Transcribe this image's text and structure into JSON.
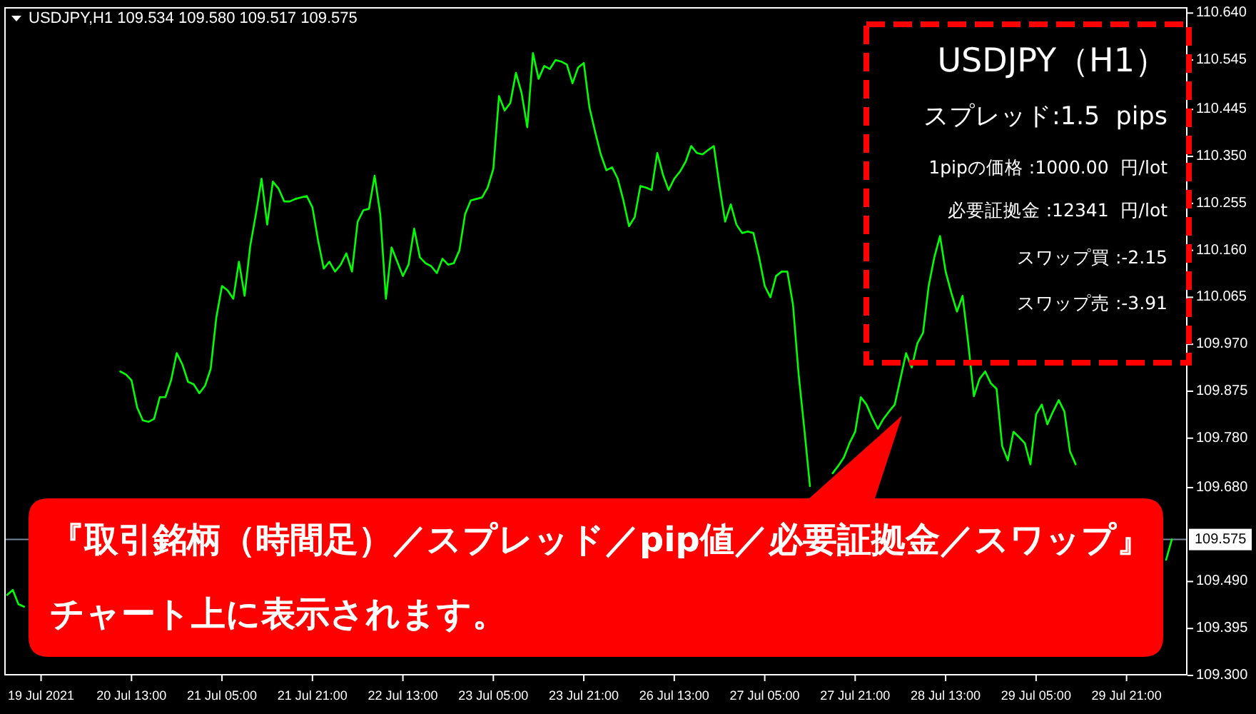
{
  "chart_data": {
    "type": "line",
    "title": "USDJPY,H1 109.534 109.580 109.517 109.575",
    "categories": [
      null,
      null,
      null,
      null,
      null,
      null,
      "19 Jul 2021",
      null,
      null,
      null,
      null,
      null,
      null,
      null,
      null,
      null,
      null,
      null,
      null,
      null,
      null,
      null,
      "20 Jul 13:00",
      null,
      null,
      null,
      null,
      null,
      null,
      null,
      null,
      null,
      null,
      null,
      null,
      null,
      null,
      null,
      "21 Jul 05:00",
      null,
      null,
      null,
      null,
      null,
      null,
      null,
      null,
      null,
      null,
      null,
      null,
      null,
      null,
      null,
      "21 Jul 21:00",
      null,
      null,
      null,
      null,
      null,
      null,
      null,
      null,
      null,
      null,
      null,
      null,
      null,
      null,
      null,
      "22 Jul 13:00",
      null,
      null,
      null,
      null,
      null,
      null,
      null,
      null,
      null,
      null,
      null,
      null,
      null,
      null,
      null,
      "23 Jul 05:00",
      null,
      null,
      null,
      null,
      null,
      null,
      null,
      null,
      null,
      null,
      null,
      null,
      null,
      null,
      null,
      "23 Jul 21:00",
      null,
      null,
      null,
      null,
      null,
      null,
      null,
      null,
      null,
      null,
      null,
      null,
      null,
      null,
      null,
      "26 Jul 13:00",
      null,
      null,
      null,
      null,
      null,
      null,
      null,
      null,
      null,
      null,
      null,
      null,
      null,
      null,
      null,
      "27 Jul 05:00",
      null,
      null,
      null,
      null,
      null,
      null,
      null,
      null,
      null,
      null,
      null,
      null,
      null,
      null,
      null,
      "27 Jul 21:00",
      null,
      null,
      null,
      null,
      null,
      null,
      null,
      null,
      null,
      null,
      null,
      null,
      null,
      null,
      null,
      "28 Jul 13:00",
      null,
      null,
      null,
      null,
      null,
      null,
      null,
      null,
      null,
      null,
      null,
      null,
      null,
      null,
      null,
      "29 Jul 05:00",
      null,
      null,
      null,
      null,
      null,
      null,
      null,
      null,
      null,
      null,
      null,
      null,
      null,
      null,
      null,
      "29 Jul 21:00",
      null,
      null,
      null,
      null,
      null,
      null,
      null,
      null
    ],
    "series": [
      {
        "color": "#00ff00",
        "values": [
          109.463,
          109.473,
          109.444,
          109.439,
          null,
          null,
          null,
          null,
          null,
          null,
          null,
          null,
          null,
          null,
          null,
          null,
          null,
          null,
          null,
          null,
          109.915,
          109.909,
          109.897,
          109.842,
          109.816,
          109.813,
          109.819,
          109.863,
          109.863,
          109.897,
          109.952,
          109.929,
          109.894,
          109.889,
          109.871,
          109.886,
          109.92,
          110.024,
          110.088,
          110.079,
          110.062,
          110.137,
          110.068,
          110.169,
          110.233,
          110.305,
          110.212,
          110.299,
          110.285,
          110.259,
          110.259,
          110.264,
          110.267,
          110.27,
          110.247,
          110.18,
          110.123,
          110.137,
          110.117,
          110.131,
          110.154,
          110.117,
          110.218,
          110.241,
          110.244,
          110.311,
          110.233,
          110.062,
          110.166,
          110.137,
          110.108,
          110.131,
          110.204,
          110.146,
          110.134,
          110.128,
          110.114,
          110.143,
          110.131,
          110.134,
          110.16,
          110.233,
          110.261,
          110.264,
          110.267,
          110.287,
          110.325,
          110.472,
          110.443,
          110.458,
          110.519,
          110.478,
          110.409,
          110.559,
          110.507,
          110.533,
          110.527,
          110.545,
          110.542,
          110.536,
          110.498,
          110.53,
          110.539,
          110.449,
          110.4,
          110.354,
          110.322,
          110.328,
          110.305,
          110.261,
          110.209,
          110.227,
          110.29,
          110.287,
          110.282,
          110.357,
          110.313,
          110.282,
          110.305,
          110.319,
          110.339,
          110.371,
          110.357,
          110.354,
          110.363,
          110.371,
          110.29,
          110.218,
          110.253,
          110.212,
          110.195,
          110.198,
          110.195,
          110.146,
          110.088,
          110.065,
          110.108,
          110.117,
          110.117,
          110.05,
          109.909,
          109.799,
          109.683,
          null,
          null,
          null,
          109.709,
          109.724,
          109.741,
          109.77,
          109.793,
          109.863,
          109.848,
          109.822,
          109.799,
          109.819,
          109.834,
          109.848,
          109.9,
          109.952,
          109.923,
          109.972,
          109.993,
          110.088,
          110.146,
          110.189,
          110.117,
          110.074,
          110.036,
          110.068,
          109.972,
          109.865,
          109.9,
          109.915,
          109.891,
          109.88,
          109.764,
          109.735,
          109.793,
          109.782,
          109.77,
          109.727,
          109.828,
          109.848,
          109.808,
          109.834,
          109.857,
          109.834,
          109.753,
          109.727,
          null,
          null,
          null,
          null,
          null,
          null,
          null,
          null,
          null,
          null,
          null,
          null,
          null,
          null,
          null,
          109.534,
          109.575
        ]
      }
    ],
    "ylim": [
      109.3,
      110.652
    ],
    "yticks": [
      {
        "value": 110.64,
        "label": "110.640"
      },
      110.545,
      110.445,
      {
        "value": 110.35,
        "label": "110.350"
      },
      110.255,
      {
        "value": 110.16,
        "label": "110.160"
      },
      110.065,
      {
        "value": 109.97,
        "label": "109.970"
      },
      109.875,
      {
        "value": 109.78,
        "label": "109.780"
      },
      {
        "value": 109.68,
        "label": "109.680"
      },
      {
        "value": 109.49,
        "label": "109.490"
      },
      109.395,
      {
        "value": 109.3,
        "label": "109.300"
      }
    ],
    "ref_lines": [
      {
        "axis": "y",
        "value": 109.575,
        "label": "109.575",
        "color": "#778899"
      }
    ],
    "annotations": [
      "USDJPY（H1）",
      "スプレッド:1.5  pips",
      "1pipの価格 :1000.00  円/lot",
      "必要証拠金 :12341  円/lot",
      "スワップ買 :-2.15",
      "スワップ売 :-3.91",
      "『取引銘柄（時間足）／スプレッド／pip値／必要証拠金／スワップ』",
      "チャート上に表示されます。"
    ]
  }
}
